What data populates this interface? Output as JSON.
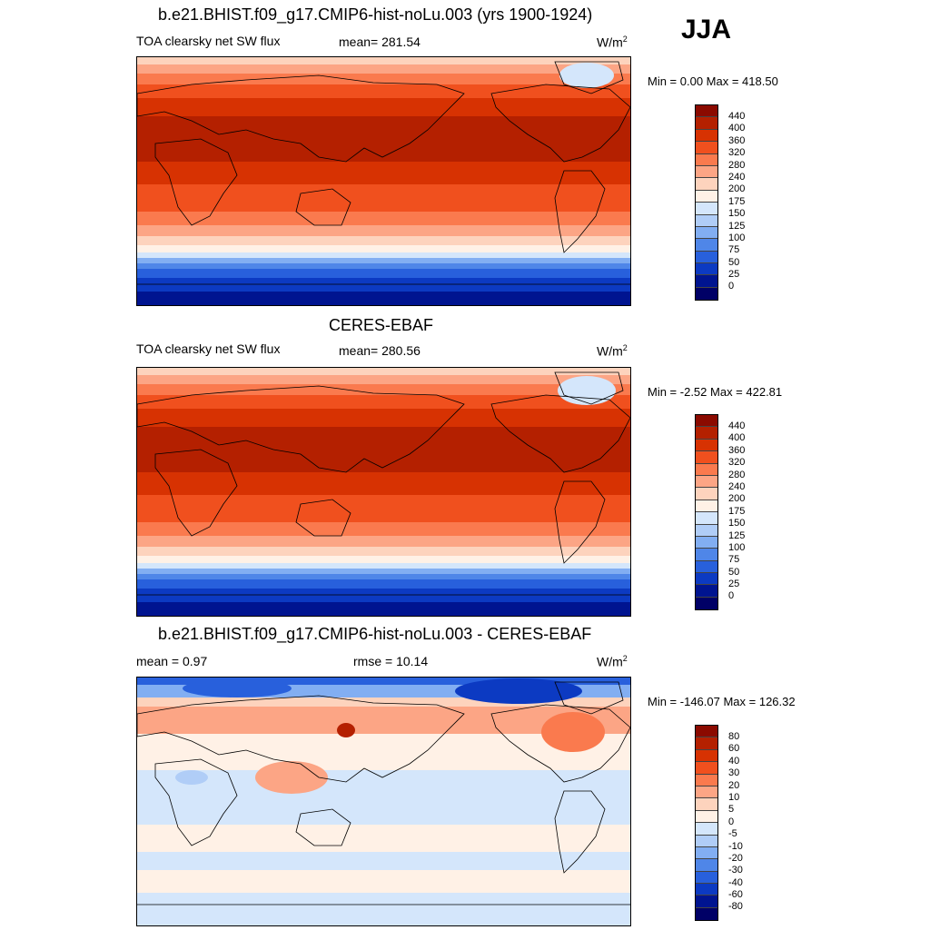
{
  "season": "JJA",
  "units": "W/m",
  "units_sup": "2",
  "panels": [
    {
      "title": "b.e21.BHIST.f09_g17.CMIP6-hist-noLu.003 (yrs 1900-1924)",
      "left_label": "TOA clearsky net SW flux",
      "center_label": "mean= 281.54",
      "minmax": "Min =   0.00 Max = 418.50",
      "colorbar_labels": [
        "440",
        "400",
        "360",
        "320",
        "280",
        "240",
        "200",
        "175",
        "150",
        "125",
        "100",
        "75",
        "50",
        "25",
        "0"
      ],
      "colorbar_colors": [
        "#8b0a00",
        "#b42000",
        "#d73202",
        "#f0501e",
        "#fa7a4e",
        "#fca585",
        "#fdd3bd",
        "#fff1e6",
        "#d4e6fb",
        "#b0cdf7",
        "#82aef2",
        "#4f86e8",
        "#2860dc",
        "#0c3ac2",
        "#001490",
        "#000066"
      ]
    },
    {
      "title": "CERES-EBAF",
      "left_label": "TOA clearsky net SW flux",
      "center_label": "mean= 280.56",
      "minmax": "Min =  -2.52 Max = 422.81",
      "colorbar_labels": [
        "440",
        "400",
        "360",
        "320",
        "280",
        "240",
        "200",
        "175",
        "150",
        "125",
        "100",
        "75",
        "50",
        "25",
        "0"
      ],
      "colorbar_colors": [
        "#8b0a00",
        "#b42000",
        "#d73202",
        "#f0501e",
        "#fa7a4e",
        "#fca585",
        "#fdd3bd",
        "#fff1e6",
        "#d4e6fb",
        "#b0cdf7",
        "#82aef2",
        "#4f86e8",
        "#2860dc",
        "#0c3ac2",
        "#001490",
        "#000066"
      ]
    },
    {
      "title": "b.e21.BHIST.f09_g17.CMIP6-hist-noLu.003 - CERES-EBAF",
      "left_label": "mean =   0.97",
      "center_label": "rmse =  10.14",
      "minmax": "Min = -146.07 Max = 126.32",
      "colorbar_labels": [
        "80",
        "60",
        "40",
        "30",
        "20",
        "10",
        "5",
        "0",
        "-5",
        "-10",
        "-20",
        "-30",
        "-40",
        "-60",
        "-80"
      ],
      "colorbar_colors": [
        "#8b0a00",
        "#b42000",
        "#d73202",
        "#f0501e",
        "#fa7a4e",
        "#fca585",
        "#fdd3bd",
        "#fff1e6",
        "#d4e6fb",
        "#b0cdf7",
        "#82aef2",
        "#4f86e8",
        "#2860dc",
        "#0c3ac2",
        "#001490",
        "#000066"
      ]
    }
  ]
}
